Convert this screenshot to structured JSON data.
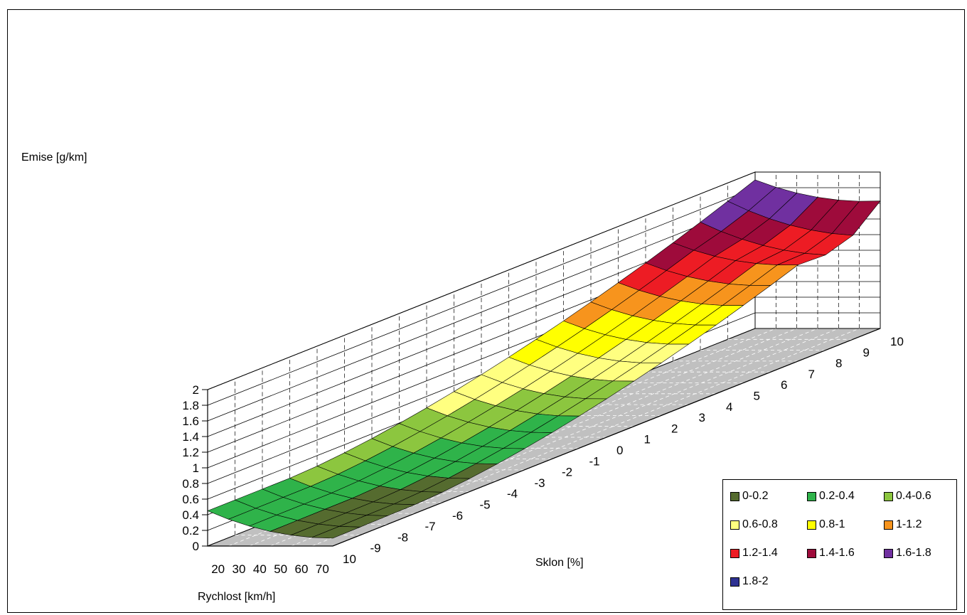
{
  "chart_data": {
    "type": "surface3d",
    "zlabel": "Emise [g/km]",
    "xlabel": "Rychlost [km/h]",
    "ylabel": "Sklon [%]",
    "zlim": [
      0,
      2
    ],
    "z_ticks": [
      "0",
      "0.2",
      "0.4",
      "0.6",
      "0.8",
      "1",
      "1.2",
      "1.4",
      "1.6",
      "1.8",
      "2"
    ],
    "x_ticks": [
      "20",
      "30",
      "40",
      "50",
      "60",
      "70"
    ],
    "y_ticks": [
      "10",
      "-9",
      "-8",
      "-7",
      "-6",
      "-5",
      "-4",
      "-3",
      "-2",
      "-1",
      "0",
      "1",
      "2",
      "3",
      "4",
      "5",
      "6",
      "7",
      "8",
      "9",
      "10"
    ],
    "grid": true,
    "legend_position": "bottom-right",
    "legend": [
      {
        "label": "0-0.2",
        "color": "#556b2f"
      },
      {
        "label": "0.2-0.4",
        "color": "#2fb34a"
      },
      {
        "label": "0.4-0.6",
        "color": "#8cc63f"
      },
      {
        "label": "0.6-0.8",
        "color": "#ffff80"
      },
      {
        "label": "0.8-1",
        "color": "#ffff00"
      },
      {
        "label": "1-1.2",
        "color": "#f7941d"
      },
      {
        "label": "1.2-1.4",
        "color": "#ed1c24"
      },
      {
        "label": "1.4-1.6",
        "color": "#9e0b3b"
      },
      {
        "label": "1.6-1.8",
        "color": "#7030a0"
      },
      {
        "label": "1.8-2",
        "color": "#2e3192"
      }
    ]
  }
}
